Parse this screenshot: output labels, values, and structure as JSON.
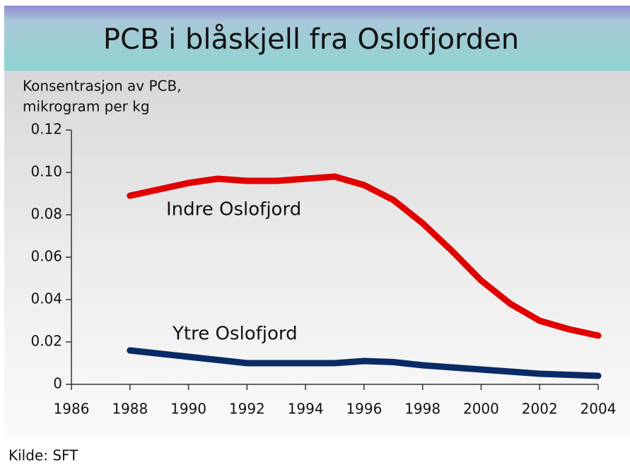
{
  "chart_data": {
    "type": "line",
    "title": "PCB i blåskjell fra Oslofjorden",
    "ylabel": [
      "Konsentrasjon av PCB,",
      "mikrogram per kg"
    ],
    "source": "Kilde: SFT",
    "x": [
      1988,
      1989,
      1990,
      1991,
      1992,
      1993,
      1994,
      1995,
      1996,
      1997,
      1998,
      1999,
      2000,
      2001,
      2002,
      2003,
      2004
    ],
    "series": [
      {
        "name": "Indre Oslofjord",
        "color": "#e00000",
        "values": [
          0.089,
          0.092,
          0.095,
          0.097,
          0.096,
          0.096,
          0.097,
          0.098,
          0.094,
          0.087,
          0.076,
          0.063,
          0.049,
          0.038,
          0.03,
          0.026,
          0.023
        ]
      },
      {
        "name": "Ytre Oslofjord",
        "color": "#0a2a66",
        "values": [
          0.016,
          0.0145,
          0.013,
          0.0115,
          0.01,
          0.01,
          0.01,
          0.01,
          0.011,
          0.0105,
          0.009,
          0.008,
          0.007,
          0.006,
          0.005,
          0.0045,
          0.004
        ]
      }
    ],
    "xlim": [
      1986,
      2004
    ],
    "xticks": [
      1986,
      1988,
      1990,
      1992,
      1994,
      1996,
      1998,
      2000,
      2002,
      2004
    ],
    "ylim": [
      0,
      0.12
    ],
    "yticks": [
      0,
      0.02,
      0.04,
      0.06,
      0.08,
      {
        "value": 0.1,
        "label": "0.10"
      },
      0.12
    ]
  }
}
